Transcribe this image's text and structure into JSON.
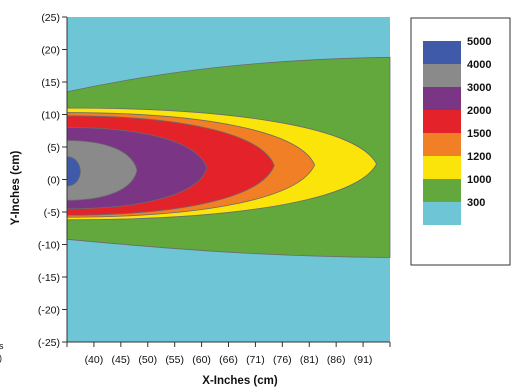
{
  "chart_data": {
    "type": "contour",
    "xlabel": "X-Inches (cm)",
    "ylabel": "Y-Inches (cm)",
    "x_ticks": [
      "(40)",
      "(45)",
      "(50)",
      "(55)",
      "(60)",
      "(66)",
      "(71)",
      "(76)",
      "(81)",
      "(86)",
      "(91)"
    ],
    "y_ticks": [
      "(25)",
      "(20)",
      "(15)",
      "(10)",
      "(5)",
      "(0)",
      "(-5)",
      "(-10)",
      "(-15)",
      "(-20)",
      "(-25)"
    ],
    "y_values": [
      25,
      20,
      15,
      10,
      5,
      0,
      -5,
      -10,
      -15,
      -20,
      -25
    ],
    "x_slots": 12,
    "ylim": [
      -25,
      25
    ],
    "edge_label_fragments": [
      "s",
      ")"
    ],
    "legend_position": "right",
    "levels": [
      {
        "label": "5000",
        "color": "#3f5aa8",
        "x_extent": 0.5,
        "y_top": 3.5,
        "y_bottom": -1.0
      },
      {
        "label": "4000",
        "color": "#8a8a8a",
        "x_extent": 2.6,
        "y_top": 6.0,
        "y_bottom": -3.2
      },
      {
        "label": "3000",
        "color": "#7b3585",
        "x_extent": 5.2,
        "y_top": 8.0,
        "y_bottom": -4.5
      },
      {
        "label": "2000",
        "color": "#e3222a",
        "x_extent": 7.7,
        "y_top": 9.8,
        "y_bottom": -5.5
      },
      {
        "label": "1500",
        "color": "#f07f26",
        "x_extent": 9.2,
        "y_top": 10.3,
        "y_bottom": -5.8
      },
      {
        "label": "1200",
        "color": "#fbe40a",
        "x_extent": 11.5,
        "y_top": 11.0,
        "y_bottom": -6.2
      },
      {
        "label": "1000",
        "color": "#63a83c",
        "x_extent": 12.0,
        "y_top_start": 13.5,
        "y_top_end": 18.8,
        "y_bottom_start": -9.2,
        "y_bottom_end": -12.0
      },
      {
        "label": "300",
        "color": "#6ec5d6"
      }
    ]
  }
}
